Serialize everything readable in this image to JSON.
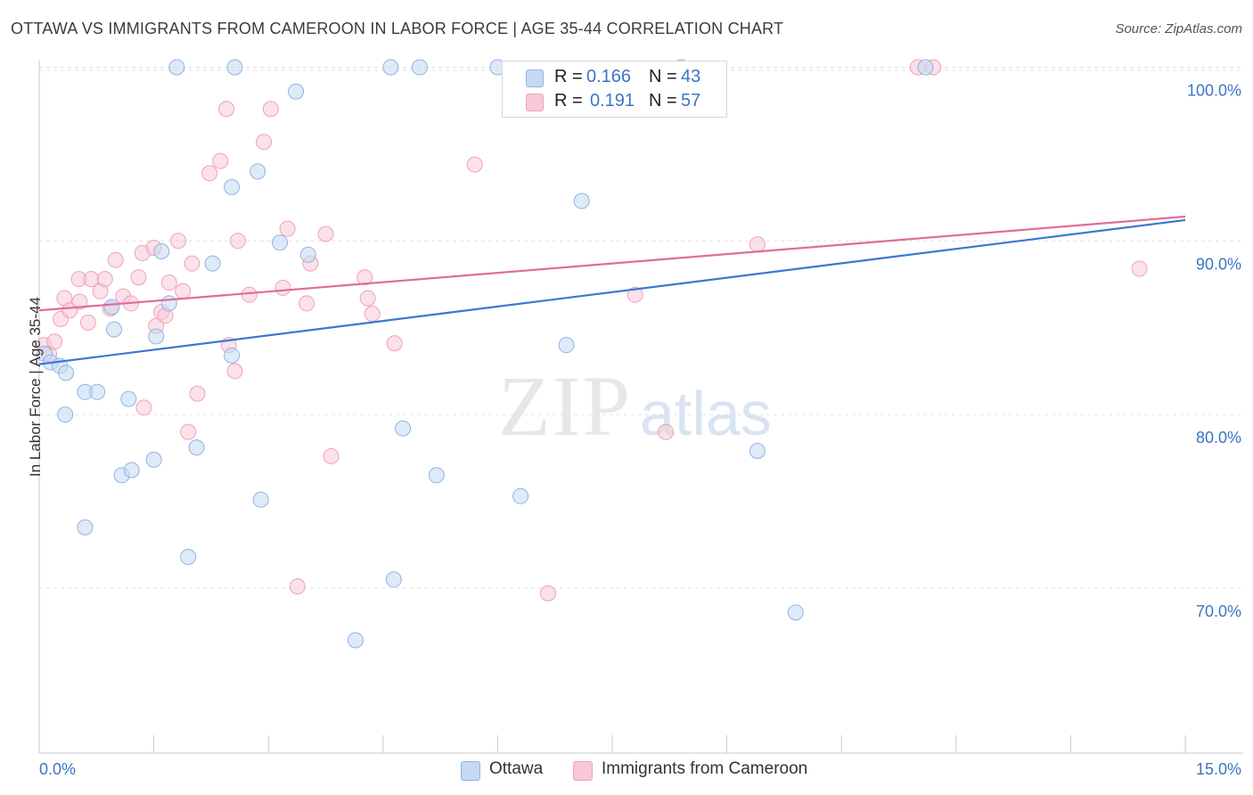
{
  "title": "OTTAWA VS IMMIGRANTS FROM CAMEROON IN LABOR FORCE | AGE 35-44 CORRELATION CHART",
  "source": "Source: ZipAtlas.com",
  "watermark": {
    "zip": "ZIP",
    "atlas": "atlas"
  },
  "legend": {
    "rows": [
      {
        "r_label": "R = ",
        "r_value": "0.166",
        "n_label": "N = ",
        "n_value": "43"
      },
      {
        "r_label": "R = ",
        "r_value": "0.191",
        "n_label": "N = ",
        "n_value": "57"
      }
    ]
  },
  "colors": {
    "blue_fill": "#c5d9f3",
    "blue_stroke": "#8fb4e3",
    "blue_line": "#3a78d0",
    "pink_fill": "#f8c8d7",
    "pink_stroke": "#eea2bb",
    "pink_line": "#e06b99",
    "tick_label": "#3a75c4",
    "grid": "#e0e0e0"
  },
  "chart_data": {
    "type": "scatter",
    "title": "OTTAWA VS IMMIGRANTS FROM CAMEROON IN LABOR FORCE | AGE 35-44 CORRELATION CHART",
    "xlabel": "",
    "ylabel": "In Labor Force | Age 35-44",
    "xlim": [
      0,
      15
    ],
    "ylim": [
      60.5,
      101
    ],
    "x_tick_labels": [
      "0.0%",
      "15.0%"
    ],
    "y_ticks": [
      70,
      80,
      90,
      100
    ],
    "y_tick_labels": [
      "70.0%",
      "80.0%",
      "90.0%",
      "100.0%"
    ],
    "grid": "horizontal dashed",
    "legend_position": "top-center",
    "series": [
      {
        "name": "Ottawa",
        "color": "blue",
        "trend": {
          "x": [
            0,
            15
          ],
          "y": [
            82.9,
            91.2
          ]
        },
        "points": [
          [
            0.07,
            83.5
          ],
          [
            0.15,
            83.0
          ],
          [
            0.27,
            82.8
          ],
          [
            0.35,
            82.4
          ],
          [
            0.34,
            80.0
          ],
          [
            0.6,
            81.3
          ],
          [
            0.76,
            81.3
          ],
          [
            0.98,
            84.9
          ],
          [
            0.95,
            86.2
          ],
          [
            1.17,
            80.9
          ],
          [
            1.08,
            76.5
          ],
          [
            1.21,
            76.8
          ],
          [
            1.5,
            77.4
          ],
          [
            1.53,
            84.5
          ],
          [
            1.6,
            89.4
          ],
          [
            1.7,
            86.4
          ],
          [
            2.06,
            78.1
          ],
          [
            1.95,
            71.8
          ],
          [
            2.27,
            88.7
          ],
          [
            2.52,
            83.4
          ],
          [
            2.52,
            93.1
          ],
          [
            2.86,
            94.0
          ],
          [
            2.9,
            75.1
          ],
          [
            3.15,
            89.9
          ],
          [
            3.36,
            98.6
          ],
          [
            3.52,
            89.2
          ],
          [
            4.14,
            67.0
          ],
          [
            4.64,
            70.5
          ],
          [
            4.76,
            79.2
          ],
          [
            5.2,
            76.5
          ],
          [
            6.3,
            75.3
          ],
          [
            6.9,
            84.0
          ],
          [
            7.1,
            92.3
          ],
          [
            9.4,
            77.9
          ],
          [
            9.9,
            68.6
          ],
          [
            11.6,
            100.0
          ],
          [
            0.6,
            73.5
          ],
          [
            1.8,
            100.0
          ],
          [
            2.56,
            100.0
          ],
          [
            4.6,
            100.0
          ],
          [
            4.98,
            100.0
          ],
          [
            6.0,
            100.0
          ],
          [
            8.4,
            100.0
          ]
        ]
      },
      {
        "name": "Immigrants from Cameroon",
        "color": "pink",
        "trend": {
          "x": [
            0,
            15
          ],
          "y": [
            86.0,
            91.4
          ]
        },
        "points": [
          [
            0.06,
            84.0
          ],
          [
            0.13,
            83.5
          ],
          [
            0.2,
            84.2
          ],
          [
            0.28,
            85.5
          ],
          [
            0.33,
            86.7
          ],
          [
            0.4,
            86.0
          ],
          [
            0.53,
            86.5
          ],
          [
            0.64,
            85.3
          ],
          [
            0.52,
            87.8
          ],
          [
            0.68,
            87.8
          ],
          [
            0.8,
            87.1
          ],
          [
            0.86,
            87.8
          ],
          [
            0.93,
            86.1
          ],
          [
            1.0,
            88.9
          ],
          [
            1.1,
            86.8
          ],
          [
            1.2,
            86.4
          ],
          [
            1.3,
            87.9
          ],
          [
            1.35,
            89.3
          ],
          [
            1.37,
            80.4
          ],
          [
            1.5,
            89.6
          ],
          [
            1.53,
            85.1
          ],
          [
            1.6,
            85.9
          ],
          [
            1.65,
            85.7
          ],
          [
            1.7,
            87.6
          ],
          [
            1.82,
            90.0
          ],
          [
            1.88,
            87.1
          ],
          [
            1.95,
            79.0
          ],
          [
            2.0,
            88.7
          ],
          [
            2.07,
            81.2
          ],
          [
            2.23,
            93.9
          ],
          [
            2.37,
            94.6
          ],
          [
            2.45,
            97.6
          ],
          [
            2.48,
            84.0
          ],
          [
            2.56,
            82.5
          ],
          [
            2.6,
            90.0
          ],
          [
            2.75,
            86.9
          ],
          [
            2.94,
            95.7
          ],
          [
            3.03,
            97.6
          ],
          [
            3.19,
            87.3
          ],
          [
            3.25,
            90.7
          ],
          [
            3.38,
            70.1
          ],
          [
            3.5,
            86.4
          ],
          [
            3.55,
            88.7
          ],
          [
            3.75,
            90.4
          ],
          [
            3.82,
            77.6
          ],
          [
            4.26,
            87.9
          ],
          [
            4.3,
            86.7
          ],
          [
            4.36,
            85.8
          ],
          [
            4.65,
            84.1
          ],
          [
            5.7,
            94.4
          ],
          [
            6.66,
            69.7
          ],
          [
            7.8,
            86.9
          ],
          [
            8.2,
            79.0
          ],
          [
            9.4,
            89.8
          ],
          [
            11.5,
            100.0
          ],
          [
            11.7,
            100.0
          ],
          [
            14.4,
            88.4
          ]
        ]
      }
    ]
  },
  "bottom_legend": {
    "ottawa": "Ottawa",
    "cameroon": "Immigrants from Cameroon"
  }
}
